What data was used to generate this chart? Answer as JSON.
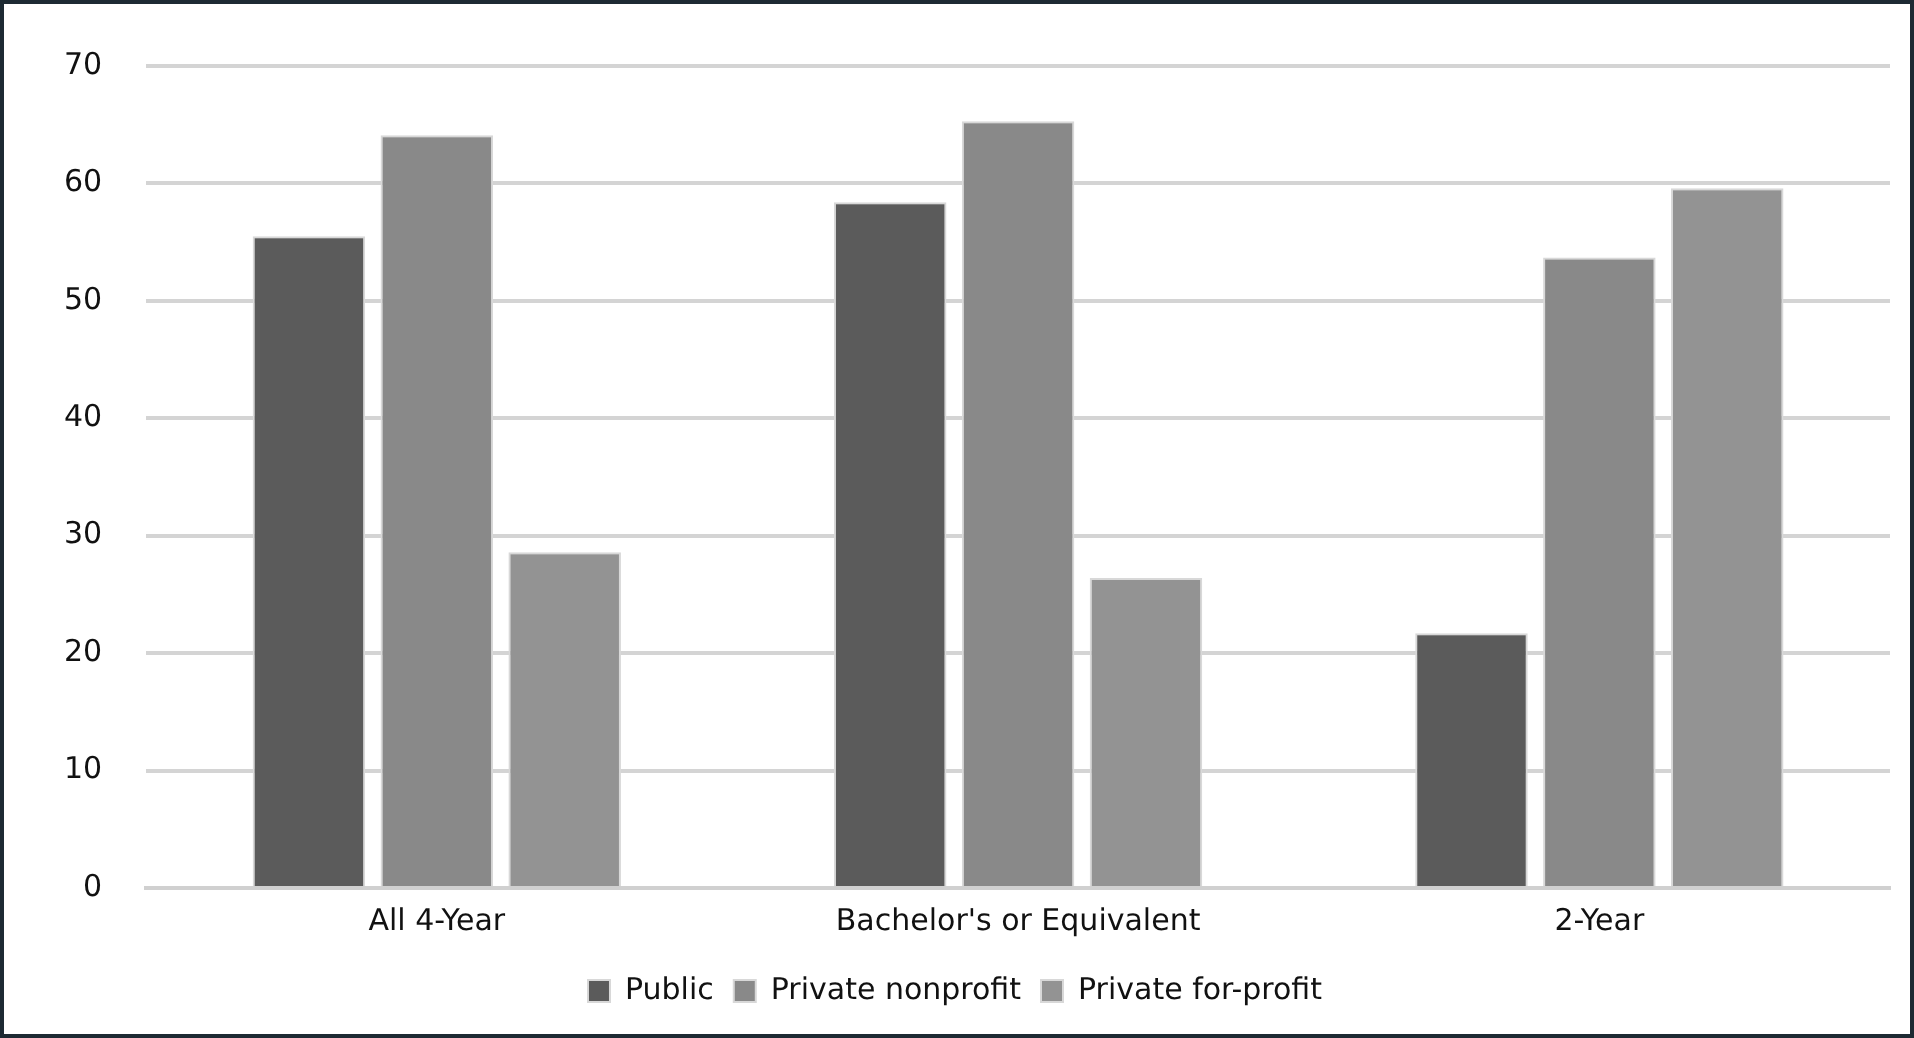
{
  "chart_data": {
    "type": "bar",
    "categories": [
      "All 4-Year",
      "Bachelor's or Equivalent",
      "2-Year"
    ],
    "series": [
      {
        "name": "Public",
        "color": "#5b5b5b",
        "values": [
          55.5,
          58.4,
          21.7
        ]
      },
      {
        "name": "Private nonprofit",
        "color": "#898989",
        "values": [
          64.1,
          65.3,
          53.7
        ]
      },
      {
        "name": "Private for-profit",
        "color": "#939393",
        "values": [
          28.6,
          26.4,
          59.6
        ]
      }
    ],
    "ylim": [
      0,
      70
    ],
    "yticks": [
      0,
      10,
      20,
      30,
      40,
      50,
      60,
      70
    ],
    "grid": "y",
    "legend": "bottom"
  }
}
